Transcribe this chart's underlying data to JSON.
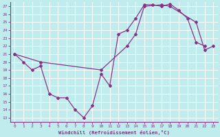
{
  "xlabel": "Windchill (Refroidissement éolien,°C)",
  "xlim": [
    -0.5,
    23.5
  ],
  "ylim": [
    12.5,
    27.5
  ],
  "xticks": [
    0,
    1,
    2,
    3,
    4,
    5,
    6,
    7,
    8,
    9,
    10,
    11,
    12,
    13,
    14,
    15,
    16,
    17,
    18,
    19,
    20,
    21,
    22,
    23
  ],
  "yticks": [
    13,
    14,
    15,
    16,
    17,
    18,
    19,
    20,
    21,
    22,
    23,
    24,
    25,
    26,
    27
  ],
  "background_color": "#c0ecee",
  "grid_color": "#ffffff",
  "line_color": "#883388",
  "line1_x": [
    0,
    1,
    2,
    3,
    4,
    5,
    6,
    7,
    8,
    9,
    10,
    11,
    12,
    13,
    14,
    15,
    16,
    17,
    18,
    19,
    20,
    21,
    22
  ],
  "line1_y": [
    21.0,
    20.0,
    19.0,
    19.5,
    16.0,
    15.5,
    15.5,
    14.0,
    13.0,
    14.5,
    18.5,
    17.0,
    23.5,
    24.0,
    25.5,
    27.2,
    27.2,
    27.0,
    27.3,
    26.5,
    25.5,
    22.5,
    22.0
  ],
  "line2_x": [
    0,
    3,
    10,
    13,
    14,
    15,
    17,
    18,
    21,
    22,
    23
  ],
  "line2_y": [
    21.0,
    20.0,
    19.0,
    22.0,
    23.5,
    27.0,
    27.2,
    27.0,
    25.0,
    21.5,
    22.0
  ]
}
